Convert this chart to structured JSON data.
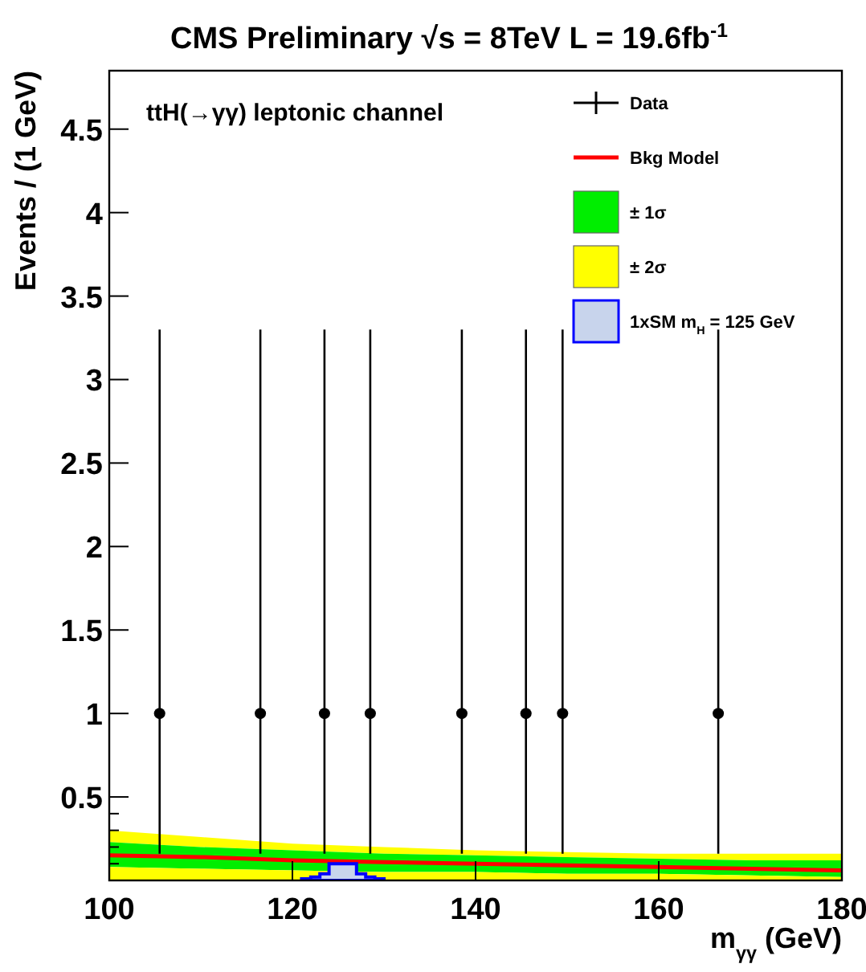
{
  "chart_data": {
    "type": "scatter",
    "title": "CMS Preliminary √s = 8TeV L = 19.6fb$^{-1}$",
    "xlabel": "m$_{γγ}$ (GeV)",
    "ylabel": "Events / (1 GeV)",
    "annotations": [
      "ttH(→γγ) leptonic channel"
    ],
    "xlim": [
      100,
      180
    ],
    "xticks": [
      100,
      120,
      140,
      160,
      180
    ],
    "ylim": [
      0,
      4.85
    ],
    "yticks": [
      {
        "value": 0.1,
        "label": null
      },
      {
        "value": 0.2,
        "label": null
      },
      {
        "value": 0.3,
        "label": null
      },
      {
        "value": 0.4,
        "label": null
      },
      0.5,
      1,
      1.5,
      2,
      2.5,
      3,
      3.5,
      4,
      4.5
    ],
    "legend": "top right",
    "stacked": true,
    "series": [
      {
        "name": "Data",
        "marker": "circle",
        "color": "#000000",
        "x": [
          105.5,
          116.5,
          123.5,
          128.5,
          138.5,
          145.5,
          149.5,
          166.5
        ],
        "values": [
          1,
          1,
          1,
          1,
          1,
          1,
          1,
          1
        ],
        "errors": [
          [
            0.16,
            3.3
          ],
          [
            0.16,
            3.3
          ],
          [
            0.16,
            3.3
          ],
          [
            0.16,
            3.3
          ],
          [
            0.16,
            3.3
          ],
          [
            0.16,
            3.3
          ],
          [
            0.16,
            3.3
          ],
          [
            0.16,
            3.3
          ]
        ]
      },
      {
        "name": "Bkg Model",
        "type": "line",
        "color": "#ff0000",
        "x": [
          100,
          110,
          120,
          130,
          140,
          150,
          160,
          170,
          180
        ],
        "values": [
          0.15,
          0.14,
          0.12,
          0.11,
          0.1,
          0.09,
          0.08,
          0.07,
          0.06
        ]
      },
      {
        "type": "area",
        "color": "#ffff00",
        "x": [
          100,
          110,
          120,
          130,
          140,
          150,
          160,
          170,
          180
        ],
        "values": [
          0.08,
          0.07,
          0.06,
          0.05,
          0.05,
          0.04,
          0.04,
          0.03,
          0.02
        ]
      },
      {
        "name": "± 1σ",
        "type": "area",
        "color": "#00ee00",
        "x": [
          100,
          110,
          120,
          130,
          140,
          150,
          160,
          170,
          180
        ],
        "values": [
          0.15,
          0.13,
          0.12,
          0.11,
          0.1,
          0.1,
          0.09,
          0.09,
          0.1
        ]
      },
      {
        "name": "± 2σ",
        "type": "area",
        "color": "#ffff00",
        "x": [
          100,
          110,
          120,
          130,
          140,
          150,
          160,
          170,
          180
        ],
        "values": [
          0.07,
          0.06,
          0.04,
          0.04,
          0.03,
          0.03,
          0.03,
          0.04,
          0.04
        ]
      },
      {
        "name": "1xSM m$_{H}$ = 125 GeV",
        "type": "histogram",
        "color": "#0000ff",
        "bins": [
          121,
          122,
          123,
          124,
          125,
          126,
          127,
          128,
          129,
          130
        ],
        "values": [
          0.01,
          0.02,
          0.04,
          0.1,
          0.1,
          0.1,
          0.04,
          0.02,
          0.01
        ]
      }
    ]
  }
}
